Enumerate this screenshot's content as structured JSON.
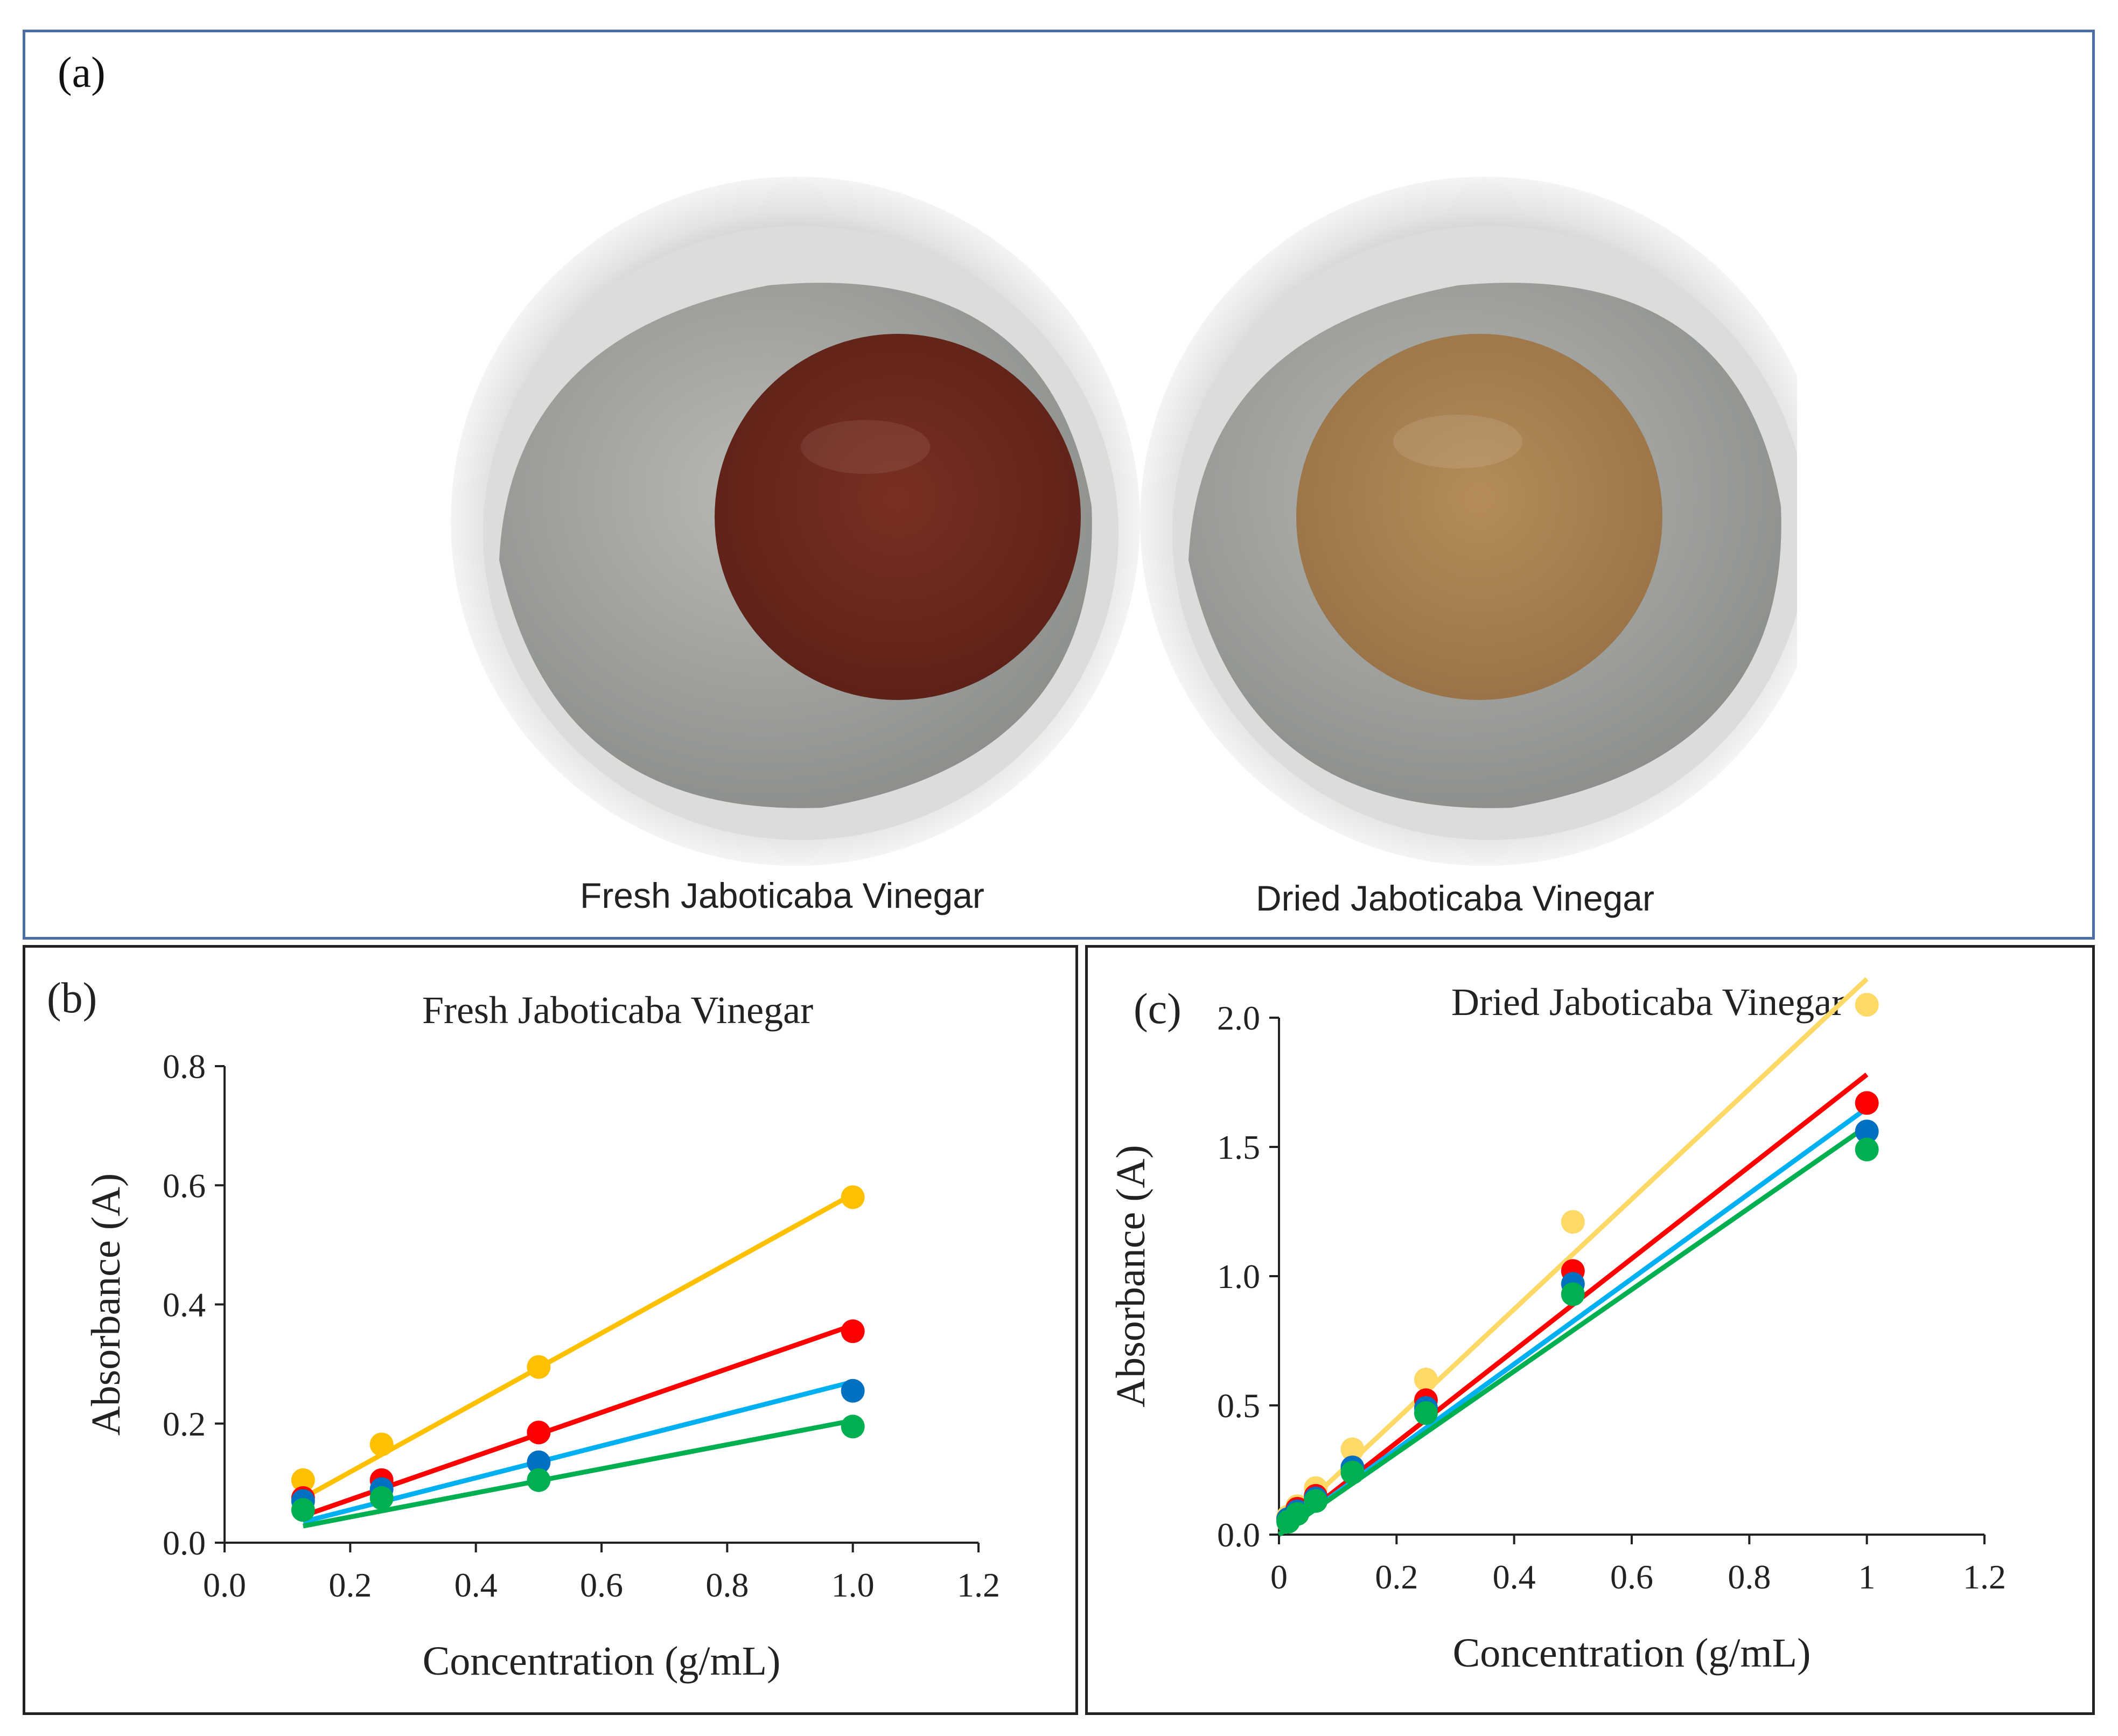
{
  "panel_a": {
    "label": "(a)",
    "photos": [
      {
        "caption": "Fresh Jaboticaba Vinegar",
        "liquid_color": "#7a3022",
        "liquid_edge": "#5e2118"
      },
      {
        "caption": "Dried Jaboticaba Vinegar",
        "liquid_color": "#b58c5a",
        "liquid_edge": "#9a7448"
      }
    ]
  },
  "chart_data": [
    {
      "panel_label": "(b)",
      "type": "scatter",
      "title": "Fresh Jaboticaba Vinegar",
      "xlabel": "Concentration (g/mL)",
      "ylabel": "Absorbance (A)",
      "xlim": [
        0,
        1.2
      ],
      "ylim": [
        0,
        0.8
      ],
      "xticks": [
        "0.0",
        "0.2",
        "0.4",
        "0.6",
        "0.8",
        "1.0",
        "1.2"
      ],
      "yticks": [
        "0.0",
        "0.2",
        "0.4",
        "0.6",
        "0.8"
      ],
      "series": [
        {
          "name": "yellow",
          "color": "#ffc000",
          "line_color": "#ffc000",
          "x": [
            0.125,
            0.25,
            0.5,
            1.0
          ],
          "y": [
            0.105,
            0.165,
            0.295,
            0.58
          ],
          "fit": [
            [
              0.125,
              0.075
            ],
            [
              1.0,
              0.585
            ]
          ]
        },
        {
          "name": "red",
          "color": "#ff0000",
          "line_color": "#ff0000",
          "x": [
            0.125,
            0.25,
            0.5,
            1.0
          ],
          "y": [
            0.075,
            0.105,
            0.185,
            0.355
          ],
          "fit": [
            [
              0.125,
              0.045
            ],
            [
              1.0,
              0.365
            ]
          ]
        },
        {
          "name": "blue",
          "color": "#0070c0",
          "line_color": "#00b0f0",
          "x": [
            0.125,
            0.25,
            0.5,
            1.0
          ],
          "y": [
            0.07,
            0.09,
            0.135,
            0.255
          ],
          "fit": [
            [
              0.125,
              0.035
            ],
            [
              1.0,
              0.27
            ]
          ]
        },
        {
          "name": "green",
          "color": "#00b050",
          "line_color": "#00b050",
          "x": [
            0.125,
            0.25,
            0.5,
            1.0
          ],
          "y": [
            0.055,
            0.075,
            0.105,
            0.195
          ],
          "fit": [
            [
              0.125,
              0.028
            ],
            [
              1.0,
              0.205
            ]
          ]
        }
      ]
    },
    {
      "panel_label": "(c)",
      "type": "scatter",
      "title": "Dried Jaboticaba Vinegar",
      "xlabel": "Concentration (g/mL)",
      "ylabel": "Absorbance (A)",
      "xlim": [
        0,
        1.2
      ],
      "ylim": [
        0,
        2.0
      ],
      "xticks": [
        "0",
        "0.2",
        "0.4",
        "0.6",
        "0.8",
        "1",
        "1.2"
      ],
      "yticks": [
        "0.0",
        "0.5",
        "1.0",
        "1.5",
        "2.0"
      ],
      "series": [
        {
          "name": "yellow",
          "color": "#ffd966",
          "line_color": "#ffd966",
          "x": [
            0.0156,
            0.03125,
            0.0625,
            0.125,
            0.25,
            0.5,
            1.0
          ],
          "y": [
            0.07,
            0.11,
            0.18,
            0.33,
            0.6,
            1.21,
            2.05
          ],
          "fit": [
            [
              0.0,
              0.02
            ],
            [
              1.0,
              2.15
            ]
          ]
        },
        {
          "name": "red",
          "color": "#ff0000",
          "line_color": "#ff0000",
          "x": [
            0.0156,
            0.03125,
            0.0625,
            0.125,
            0.25,
            0.5,
            1.0
          ],
          "y": [
            0.06,
            0.1,
            0.15,
            0.26,
            0.52,
            1.02,
            1.67
          ],
          "fit": [
            [
              0.0,
              0.0
            ],
            [
              1.0,
              1.78
            ]
          ]
        },
        {
          "name": "blue",
          "color": "#0070c0",
          "line_color": "#00b0f0",
          "x": [
            0.0156,
            0.03125,
            0.0625,
            0.125,
            0.25,
            0.5,
            1.0
          ],
          "y": [
            0.06,
            0.09,
            0.14,
            0.26,
            0.49,
            0.97,
            1.56
          ],
          "fit": [
            [
              0.0,
              0.0
            ],
            [
              1.0,
              1.65
            ]
          ]
        },
        {
          "name": "green",
          "color": "#00b050",
          "line_color": "#00b050",
          "x": [
            0.0156,
            0.03125,
            0.0625,
            0.125,
            0.25,
            0.5,
            1.0
          ],
          "y": [
            0.05,
            0.08,
            0.13,
            0.24,
            0.47,
            0.93,
            1.49
          ],
          "fit": [
            [
              0.0,
              0.0
            ],
            [
              1.0,
              1.58
            ]
          ]
        }
      ]
    }
  ]
}
